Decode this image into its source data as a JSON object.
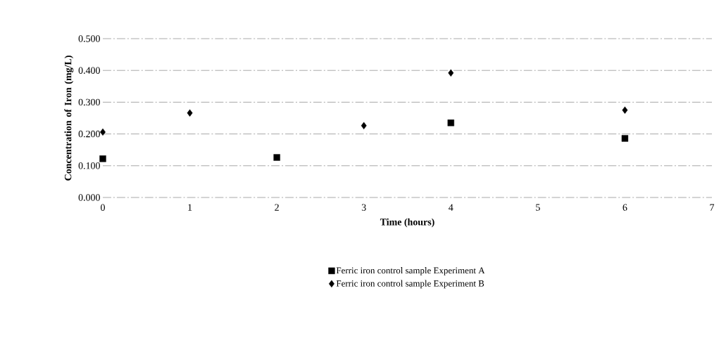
{
  "chart_data": {
    "type": "scatter",
    "xlabel": "Time (hours)",
    "ylabel": "Concentration of Iron (mg/L)",
    "xlim": [
      0,
      7
    ],
    "xticks": [
      0,
      1,
      2,
      3,
      4,
      5,
      6,
      7
    ],
    "ylim": [
      0,
      0.5
    ],
    "yticks": [
      {
        "value": 0,
        "label": "0.000"
      },
      {
        "value": 0.1,
        "label": "0.100"
      },
      {
        "value": 0.2,
        "label": "0.200"
      },
      {
        "value": 0.3,
        "label": "0.300"
      },
      {
        "value": 0.4,
        "label": "0.400"
      },
      {
        "value": 0.5,
        "label": "0.500"
      }
    ],
    "grid": "y",
    "legend": "bottom",
    "series": [
      {
        "name": "Ferric iron control sample Experiment A",
        "color": "#000000",
        "marker": "square",
        "x": [
          0,
          2,
          4,
          6
        ],
        "values": [
          0.122,
          0.126,
          0.235,
          0.186
        ]
      },
      {
        "name": "Ferric iron control sample Experiment B",
        "color": "#000000",
        "marker": "diamond",
        "x": [
          0,
          1,
          3,
          4,
          6
        ],
        "values": [
          0.206,
          0.266,
          0.226,
          0.392,
          0.275
        ]
      }
    ]
  }
}
